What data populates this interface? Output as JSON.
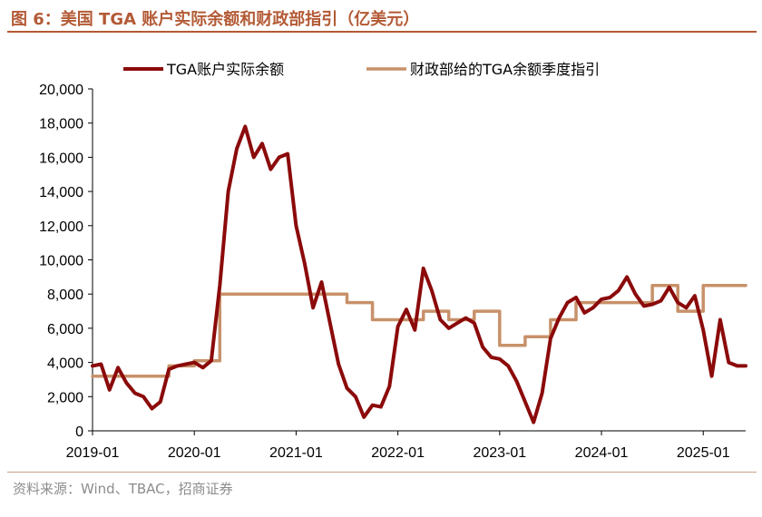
{
  "title": "图 6：美国 TGA 账户实际余额和财政部指引（亿美元）",
  "source": "资料来源：Wind、TBAC，招商证券",
  "colors": {
    "actual": "#8b0a0a",
    "guidance": "#c8916a",
    "accent": "#b35a35"
  },
  "chart_data": {
    "type": "line",
    "title": "美国 TGA 账户实际余额和财政部指引（亿美元）",
    "xlabel": "",
    "ylabel": "",
    "xlim": [
      "2019-01",
      "2025-06"
    ],
    "ylim": [
      0,
      20000
    ],
    "x_ticks": [
      "2019-01",
      "2020-01",
      "2021-01",
      "2022-01",
      "2023-01",
      "2024-01",
      "2025-01"
    ],
    "y_ticks": [
      "0",
      "2,000",
      "4,000",
      "6,000",
      "8,000",
      "10,000",
      "12,000",
      "14,000",
      "16,000",
      "18,000",
      "20,000"
    ],
    "y_tick_values": [
      0,
      2000,
      4000,
      6000,
      8000,
      10000,
      12000,
      14000,
      16000,
      18000,
      20000
    ],
    "grid": false,
    "legend": "top",
    "series": [
      {
        "name": "TGA账户实际余额",
        "x": [
          "2019-01",
          "2019-02",
          "2019-03",
          "2019-04",
          "2019-05",
          "2019-06",
          "2019-07",
          "2019-08",
          "2019-09",
          "2019-10",
          "2019-11",
          "2019-12",
          "2020-01",
          "2020-02",
          "2020-03",
          "2020-04",
          "2020-05",
          "2020-06",
          "2020-07",
          "2020-08",
          "2020-09",
          "2020-10",
          "2020-11",
          "2020-12",
          "2021-01",
          "2021-02",
          "2021-03",
          "2021-04",
          "2021-05",
          "2021-06",
          "2021-07",
          "2021-08",
          "2021-09",
          "2021-10",
          "2021-11",
          "2021-12",
          "2022-01",
          "2022-02",
          "2022-03",
          "2022-04",
          "2022-05",
          "2022-06",
          "2022-07",
          "2022-08",
          "2022-09",
          "2022-10",
          "2022-11",
          "2022-12",
          "2023-01",
          "2023-02",
          "2023-03",
          "2023-04",
          "2023-05",
          "2023-06",
          "2023-07",
          "2023-08",
          "2023-09",
          "2023-10",
          "2023-11",
          "2023-12",
          "2024-01",
          "2024-02",
          "2024-03",
          "2024-04",
          "2024-05",
          "2024-06",
          "2024-07",
          "2024-08",
          "2024-09",
          "2024-10",
          "2024-11",
          "2024-12",
          "2025-01",
          "2025-02",
          "2025-03",
          "2025-04",
          "2025-05",
          "2025-06"
        ],
        "values": [
          3800,
          3900,
          2400,
          3700,
          2800,
          2200,
          2000,
          1300,
          1700,
          3600,
          3800,
          3900,
          4000,
          3700,
          4100,
          8500,
          14000,
          16500,
          17800,
          16000,
          16800,
          15300,
          16000,
          16200,
          12000,
          9800,
          7200,
          8700,
          6300,
          3900,
          2500,
          2000,
          800,
          1500,
          1400,
          2600,
          6100,
          7100,
          5900,
          9500,
          8200,
          6500,
          6000,
          6300,
          6600,
          6300,
          4900,
          4300,
          4200,
          3800,
          2900,
          1700,
          500,
          2200,
          5400,
          6600,
          7500,
          7800,
          6900,
          7200,
          7700,
          7800,
          8200,
          9000,
          8000,
          7300,
          7400,
          7600,
          8400,
          7500,
          7200,
          7900,
          5900,
          3200,
          6500,
          4000,
          3800,
          3800
        ]
      },
      {
        "name": "财政部给的TGA余额季度指引",
        "x": [
          "2019-01",
          "2019-10",
          "2019-10",
          "2020-01",
          "2020-01",
          "2020-04",
          "2020-04",
          "2021-07",
          "2021-07",
          "2021-10",
          "2021-10",
          "2022-04",
          "2022-04",
          "2022-07",
          "2022-07",
          "2022-10",
          "2022-10",
          "2023-01",
          "2023-01",
          "2023-04",
          "2023-04",
          "2023-07",
          "2023-07",
          "2023-10",
          "2023-10",
          "2024-07",
          "2024-07",
          "2024-10",
          "2024-10",
          "2025-01",
          "2025-01",
          "2025-06"
        ],
        "values": [
          3200,
          3200,
          3800,
          3800,
          4100,
          4100,
          8000,
          8000,
          7500,
          7500,
          6500,
          6500,
          7000,
          7000,
          6500,
          6500,
          7000,
          7000,
          5000,
          5000,
          5500,
          5500,
          6500,
          6500,
          7500,
          7500,
          8500,
          8500,
          7000,
          7000,
          8500,
          8500
        ]
      }
    ]
  }
}
